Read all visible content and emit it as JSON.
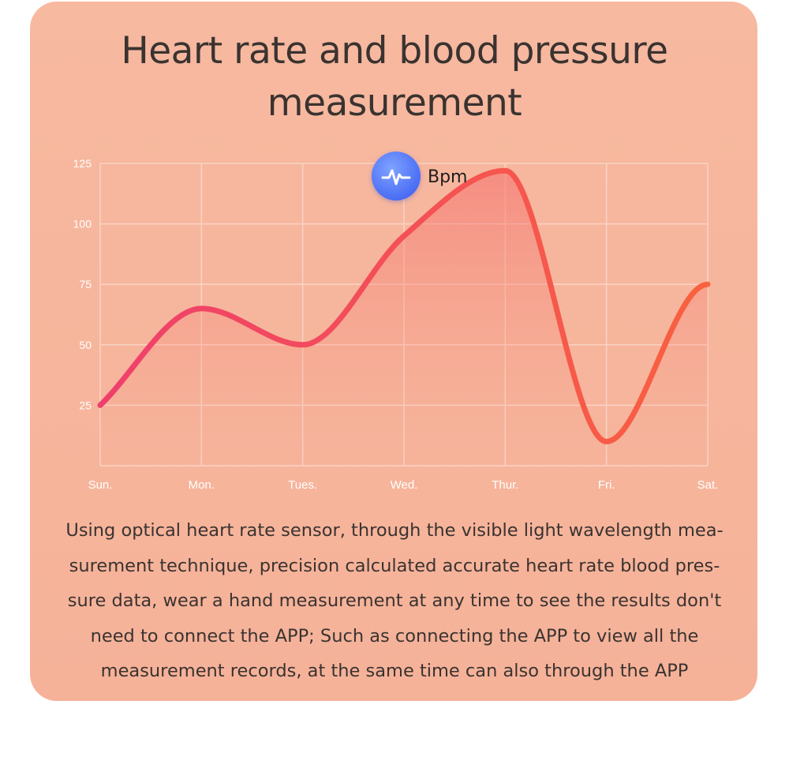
{
  "title": {
    "line1": "Heart rate and blood pressure",
    "line2": "measurement"
  },
  "legend": {
    "icon": "pulse-icon",
    "label": "Bpm"
  },
  "chart_data": {
    "type": "area",
    "categories": [
      "Sun.",
      "Mon.",
      "Tues.",
      "Wed.",
      "Thur.",
      "Fri.",
      "Sat."
    ],
    "series": [
      {
        "values": [
          25,
          65,
          50,
          95,
          122,
          10,
          75
        ],
        "color_start": "#ef3f6d",
        "color_end": "#f9613f"
      }
    ],
    "yticks": [
      25,
      50,
      75,
      100,
      125
    ],
    "ylim": [
      0,
      125
    ],
    "grid": true,
    "legend_position": "top-center"
  },
  "description": {
    "lines": [
      "Using optical heart rate sensor, through the visible light wavelength mea-",
      "surement technique, precision calculated accurate heart rate blood pres-",
      "sure data, wear a hand measurement at any time to see the results don't",
      "need to connect the APP; Such as connecting the APP to view all the",
      "measurement records, at the same time can also through the APP"
    ]
  },
  "colors": {
    "card_background": "#f7b9a0",
    "title_text": "#3a3330",
    "badge": "#4b6ef5"
  }
}
